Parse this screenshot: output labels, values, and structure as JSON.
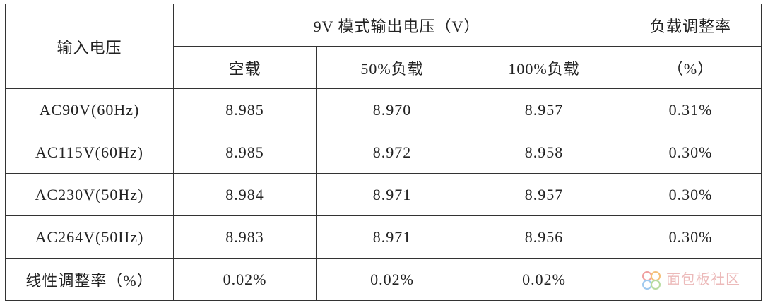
{
  "table": {
    "header": [
      [
        "输入电压",
        "9V 模式输出电压（V）",
        "负载调整率"
      ],
      [
        "空载",
        "50%负载",
        "100%负载",
        "（%）"
      ]
    ],
    "rows": [
      [
        "AC90V(60Hz)",
        "8.985",
        "8.970",
        "8.957",
        "0.31%"
      ],
      [
        "AC115V(60Hz)",
        "8.985",
        "8.972",
        "8.958",
        "0.30%"
      ],
      [
        "AC230V(50Hz)",
        "8.984",
        "8.971",
        "8.957",
        "0.30%"
      ],
      [
        "AC264V(50Hz)",
        "8.983",
        "8.971",
        "8.956",
        "0.30%"
      ],
      [
        "线性调整率（%）",
        "0.02%",
        "0.02%",
        "0.02%"
      ]
    ]
  },
  "watermark": "面包板社区"
}
